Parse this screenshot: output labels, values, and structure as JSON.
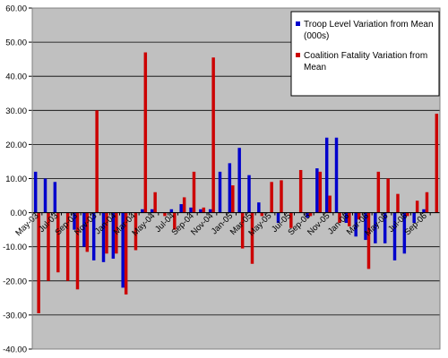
{
  "chart_data": {
    "type": "bar",
    "title": "",
    "xlabel": "",
    "ylabel": "",
    "ylim": [
      -40,
      60
    ],
    "y_tick_step": 10,
    "y_tick_labels": [
      "-40.00",
      "-30.00",
      "-20.00",
      "-10.00",
      "0.00",
      "10.00",
      "20.00",
      "30.00",
      "40.00",
      "50.00",
      "60.00"
    ],
    "grid": true,
    "legend_position": "top-right",
    "plot_background": "#c0c0c0",
    "categories": [
      "May-03",
      "Jun-03",
      "Jul-03",
      "Aug-03",
      "Sep-03",
      "Oct-03",
      "Nov-03",
      "Dec-03",
      "Jan-04",
      "Feb-04",
      "Mar-04",
      "Apr-04",
      "May-04",
      "Jun-04",
      "Jul-04",
      "Aug-04",
      "Sep-04",
      "Oct-04",
      "Nov-04",
      "Dec-04",
      "Jan-05",
      "Feb-05",
      "Mar-05",
      "Apr-05",
      "May-05",
      "Jun-05",
      "Jul-05",
      "Aug-05",
      "Sep-05",
      "Oct-05",
      "Nov-05",
      "Dec-05",
      "Jan-06",
      "Feb-06",
      "Mar-06",
      "Apr-06",
      "May-06",
      "Jun-06",
      "Jul-06",
      "Aug-06",
      "Sep-06",
      "Oct-06"
    ],
    "x_tick_labels": [
      "May-03",
      "Jul-03",
      "Sep-03",
      "Nov-03",
      "Jan-04",
      "Mar-04",
      "May-04",
      "Jul-04",
      "Sep-04",
      "Nov-04",
      "Jan-05",
      "Mar-05",
      "May-05",
      "Jul-05",
      "Sep-05",
      "Nov-05",
      "Jan-06",
      "Mar-06",
      "May-06",
      "Jul-06",
      "Sep-06"
    ],
    "series": [
      {
        "name": "Troop Level Variation from Mean (000s)",
        "color": "#0000cc",
        "values": [
          12,
          10,
          9,
          0,
          -5,
          -10,
          -14,
          -14.5,
          -13.5,
          -22,
          0,
          1,
          1,
          0,
          1,
          2.5,
          1.5,
          1,
          1,
          12,
          14.5,
          19,
          11,
          3,
          0,
          -3,
          0,
          0,
          -1.5,
          13,
          22,
          22,
          -3,
          -7,
          -8,
          -9,
          -9,
          -14,
          -12,
          -3,
          1,
          0
        ]
      },
      {
        "name": "Coalition Fatality Variation from Mean",
        "color": "#cc0000",
        "values": [
          -29.5,
          -20,
          -17.5,
          -20,
          -22.5,
          -11.5,
          30,
          -12,
          -12,
          -24,
          -11,
          47,
          6,
          -1,
          -5,
          4.5,
          12,
          1.5,
          45.5,
          0,
          8,
          -10.5,
          -15,
          -1,
          9,
          9.5,
          -4.5,
          12.5,
          -1,
          12,
          5,
          -3,
          -4,
          -2,
          -16.5,
          12,
          10,
          5.5,
          -1,
          3.5,
          6,
          29
        ]
      }
    ]
  }
}
